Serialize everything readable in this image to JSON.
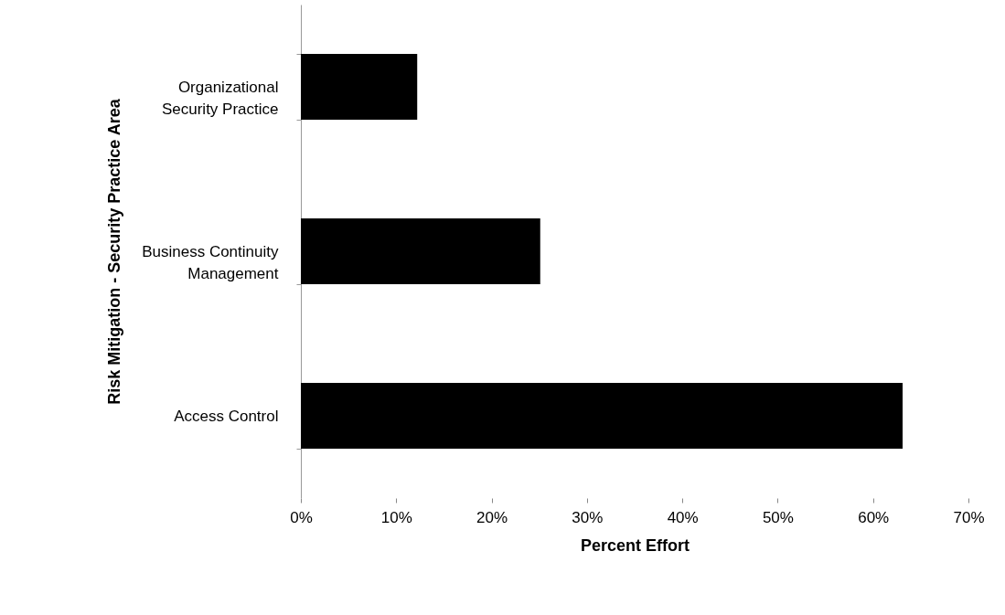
{
  "chart_data": {
    "type": "bar",
    "orientation": "horizontal",
    "xlabel": "Percent Effort",
    "ylabel": "Risk Mitigation - Security Practice Area",
    "categories": [
      "Organizational Security Practice",
      "Business Continuity Management",
      "Access Control"
    ],
    "values": [
      12.2,
      25.1,
      63.1
    ],
    "color": "#000000",
    "xlim": [
      0,
      70
    ],
    "xticks": [
      {
        "value": 0,
        "label": "0%"
      },
      {
        "value": 10,
        "label": "10%"
      },
      {
        "value": 20,
        "label": "20%"
      },
      {
        "value": 30,
        "label": "30%"
      },
      {
        "value": 40,
        "label": "40%"
      },
      {
        "value": 50,
        "label": "50%"
      },
      {
        "value": 60,
        "label": "60%"
      },
      {
        "value": 70,
        "label": "70%"
      }
    ]
  }
}
